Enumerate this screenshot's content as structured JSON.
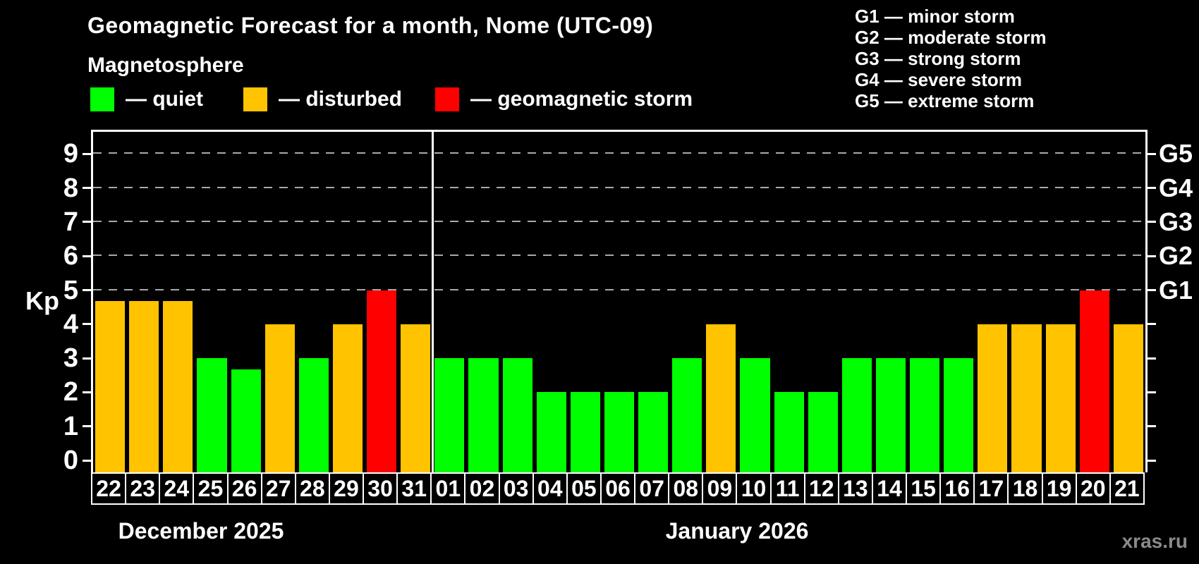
{
  "title": "Geomagnetic Forecast for a month, Nome (UTC-09)",
  "subtitle": "Magnetosphere",
  "legend": {
    "items": [
      {
        "label": "— quiet",
        "state": "quiet",
        "color": "#00FF00"
      },
      {
        "label": "— disturbed",
        "state": "disturbed",
        "color": "#FFC300"
      },
      {
        "label": "— geomagnetic storm",
        "state": "storm",
        "color": "#FF0000"
      }
    ]
  },
  "g_legend": {
    "items": [
      "G1 — minor storm",
      "G2 — moderate storm",
      "G3 — strong storm",
      "G4 — severe storm",
      "G5 — extreme storm"
    ]
  },
  "watermark": "xras.ru",
  "chart_data": {
    "type": "bar",
    "title": "Geomagnetic Forecast for a month, Nome (UTC-09)",
    "ylabel": "Kp",
    "ylim": [
      0,
      9
    ],
    "grid": "dashed horizontal at Kp 5-9 only",
    "legend_position": "top",
    "y_ticks": [
      0,
      1,
      2,
      3,
      4,
      5,
      6,
      7,
      8,
      9
    ],
    "gridlines_at": [
      5,
      6,
      7,
      8,
      9
    ],
    "right_axis_labels": [
      {
        "kp": 9,
        "label": "G5"
      },
      {
        "kp": 8,
        "label": "G4"
      },
      {
        "kp": 7,
        "label": "G3"
      },
      {
        "kp": 6,
        "label": "G2"
      },
      {
        "kp": 5,
        "label": "G1"
      }
    ],
    "state_colors": {
      "quiet": "#00FF00",
      "disturbed": "#FFC300",
      "storm": "#FF0000"
    },
    "months": [
      {
        "label": "December 2025",
        "days": [
          "22",
          "23",
          "24",
          "25",
          "26",
          "27",
          "28",
          "29",
          "30",
          "31"
        ],
        "values": [
          4.67,
          4.67,
          4.67,
          3,
          2.67,
          4,
          3,
          4,
          5,
          4
        ],
        "states": [
          "disturbed",
          "disturbed",
          "disturbed",
          "quiet",
          "quiet",
          "disturbed",
          "quiet",
          "disturbed",
          "storm",
          "disturbed"
        ]
      },
      {
        "label": "January 2026",
        "days": [
          "01",
          "02",
          "03",
          "04",
          "05",
          "06",
          "07",
          "08",
          "09",
          "10",
          "11",
          "12",
          "13",
          "14",
          "15",
          "16",
          "17",
          "18",
          "19",
          "20",
          "21"
        ],
        "values": [
          3,
          3,
          3,
          2,
          2,
          2,
          2,
          3,
          4,
          3,
          2,
          2,
          3,
          3,
          3,
          3,
          4,
          4,
          4,
          5,
          4
        ],
        "states": [
          "quiet",
          "quiet",
          "quiet",
          "quiet",
          "quiet",
          "quiet",
          "quiet",
          "quiet",
          "disturbed",
          "quiet",
          "quiet",
          "quiet",
          "quiet",
          "quiet",
          "quiet",
          "quiet",
          "disturbed",
          "disturbed",
          "disturbed",
          "storm",
          "disturbed"
        ]
      }
    ]
  }
}
